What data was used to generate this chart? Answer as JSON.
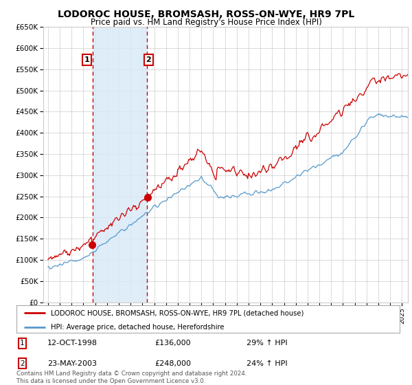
{
  "title": "LODOROC HOUSE, BROMSASH, ROSS-ON-WYE, HR9 7PL",
  "subtitle": "Price paid vs. HM Land Registry's House Price Index (HPI)",
  "legend_line1": "LODOROC HOUSE, BROMSASH, ROSS-ON-WYE, HR9 7PL (detached house)",
  "legend_line2": "HPI: Average price, detached house, Herefordshire",
  "sale1_label": "1",
  "sale2_label": "2",
  "sale1_date": "12-OCT-1998",
  "sale1_price": "£136,000",
  "sale1_pct": "29% ↑ HPI",
  "sale2_date": "23-MAY-2003",
  "sale2_price": "£248,000",
  "sale2_pct": "24% ↑ HPI",
  "footnote": "Contains HM Land Registry data © Crown copyright and database right 2024.\nThis data is licensed under the Open Government Licence v3.0.",
  "sale1_year": 1998.78,
  "sale2_year": 2003.38,
  "sale1_price_val": 136000,
  "sale2_price_val": 248000,
  "red_color": "#cc0000",
  "blue_color": "#5599cc",
  "background_color": "#ffffff",
  "grid_color": "#cccccc",
  "shade_color": "#daeaf7",
  "ylim_min": 0,
  "ylim_max": 650000,
  "xlim_min": 1994.6,
  "xlim_max": 2025.5
}
